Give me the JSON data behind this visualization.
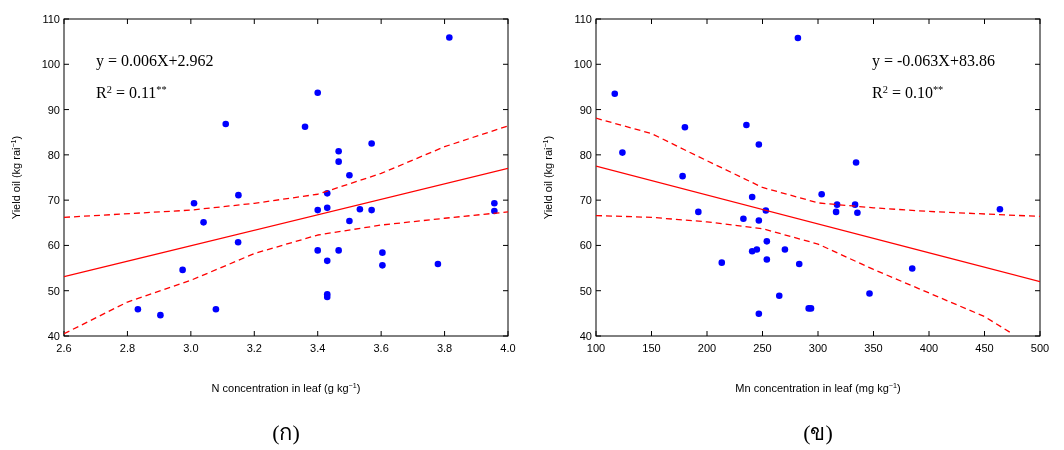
{
  "chart_data": [
    {
      "type": "scatter",
      "xlabel": "N concentration in leaf (g kg$^{−1}$)",
      "ylabel": "Yield oil (kg rai$^{−1}$)",
      "xlim": [
        2.6,
        4.0
      ],
      "xticks": [
        2.6,
        2.8,
        {
          "value": 3.0,
          "label": "3.0"
        },
        3.2,
        3.4,
        3.6,
        3.8,
        {
          "value": 4.0,
          "label": "4.0"
        }
      ],
      "ylim": [
        40,
        110
      ],
      "yticks": [
        40,
        50,
        60,
        70,
        80,
        90,
        100,
        110
      ],
      "annotations": [
        "y = 0.006X+2.962",
        "R$^{2}$ = 0.11$^{**}$",
        "(ก)"
      ],
      "series": [
        {
          "marker": "circle",
          "color": "#0000ff",
          "x": [
            3.815,
            3.4,
            3.11,
            3.36,
            3.57,
            3.466,
            3.466,
            3.5,
            3.15,
            3.43,
            3.01,
            3.957,
            3.957,
            3.4,
            3.43,
            3.533,
            3.57,
            3.04,
            3.5,
            3.149,
            3.4,
            3.466,
            3.43,
            3.604,
            3.604,
            3.779,
            2.974,
            3.43,
            3.43,
            2.833,
            2.904,
            3.079
          ],
          "values": [
            105.9,
            93.7,
            86.8,
            86.2,
            82.5,
            80.8,
            78.5,
            75.5,
            71.1,
            71.5,
            69.3,
            69.3,
            67.6,
            67.8,
            68.3,
            68.0,
            67.8,
            65.1,
            65.4,
            60.7,
            58.9,
            58.9,
            56.6,
            58.4,
            55.6,
            55.9,
            54.6,
            49.2,
            48.6,
            45.9,
            44.6,
            45.9
          ]
        },
        {
          "type": "line",
          "color": "#ff0000",
          "line_style": "solid",
          "x": [
            2.6,
            4.0
          ],
          "values": [
            53.1,
            77.0
          ]
        },
        {
          "type": "line",
          "color": "#ff0000",
          "line_style": "dashed",
          "x": [
            2.6,
            3.0,
            3.2,
            3.4,
            3.6,
            3.8,
            4.0
          ],
          "values": [
            66.2,
            67.8,
            69.3,
            71.3,
            75.9,
            81.8,
            86.4
          ]
        },
        {
          "type": "line",
          "color": "#ff0000",
          "line_style": "dashed",
          "x": [
            2.6,
            2.8,
            3.0,
            3.2,
            3.4,
            3.6,
            3.8,
            4.0
          ],
          "values": [
            40.5,
            47.5,
            52.3,
            58.2,
            62.3,
            64.5,
            66.0,
            67.4
          ]
        }
      ]
    },
    {
      "type": "scatter",
      "xlabel": "Mn concentration in leaf (mg kg$^{−1}$)",
      "ylabel": "Yield oil (kg rai$^{−1}$)",
      "xlim": [
        100,
        500
      ],
      "xticks": [
        100,
        150,
        200,
        250,
        300,
        350,
        400,
        450,
        500
      ],
      "ylim": [
        40,
        110
      ],
      "yticks": [
        40,
        50,
        60,
        70,
        80,
        90,
        100,
        110
      ],
      "annotations": [
        "y = -0.063X+83.86",
        "R$^{2}$ = 0.10$^{**}$",
        "(ข)"
      ],
      "series": [
        {
          "marker": "circle",
          "color": "#0000ff",
          "x": [
            116.9,
            281.9,
            123.8,
            180.1,
            235.5,
            246.7,
            334.3,
            178.0,
            303.3,
            240.7,
            317.2,
            333.4,
            463.9,
            253.0,
            316.3,
            335.5,
            192.2,
            232.8,
            246.7,
            253.9,
            270.2,
            240.7,
            244.9,
            253.9,
            213.3,
            283.1,
            384.9,
            346.4,
            265.1,
            291.6,
            293.7,
            246.7
          ],
          "values": [
            93.5,
            105.8,
            80.5,
            86.1,
            86.6,
            82.3,
            78.3,
            75.3,
            71.3,
            70.7,
            69.0,
            69.0,
            68.0,
            67.7,
            67.4,
            67.2,
            67.4,
            65.9,
            65.5,
            60.9,
            59.1,
            58.7,
            59.1,
            56.9,
            56.2,
            55.9,
            54.9,
            49.4,
            48.9,
            46.1,
            46.1,
            44.9
          ]
        },
        {
          "type": "line",
          "color": "#ff0000",
          "line_style": "solid",
          "x": [
            100,
            500
          ],
          "values": [
            77.5,
            52.0
          ]
        },
        {
          "type": "line",
          "color": "#ff0000",
          "line_style": "dashed",
          "x": [
            100,
            150,
            200,
            250,
            300,
            350,
            400,
            500
          ],
          "values": [
            88.1,
            84.7,
            78.7,
            72.8,
            69.4,
            68.3,
            67.5,
            66.4
          ]
        },
        {
          "type": "line",
          "color": "#ff0000",
          "line_style": "dashed",
          "x": [
            100,
            150,
            200,
            250,
            300,
            350,
            400,
            450,
            475
          ],
          "values": [
            66.6,
            66.2,
            65.2,
            63.7,
            60.3,
            54.7,
            49.5,
            44.3,
            40.5
          ]
        }
      ]
    }
  ]
}
